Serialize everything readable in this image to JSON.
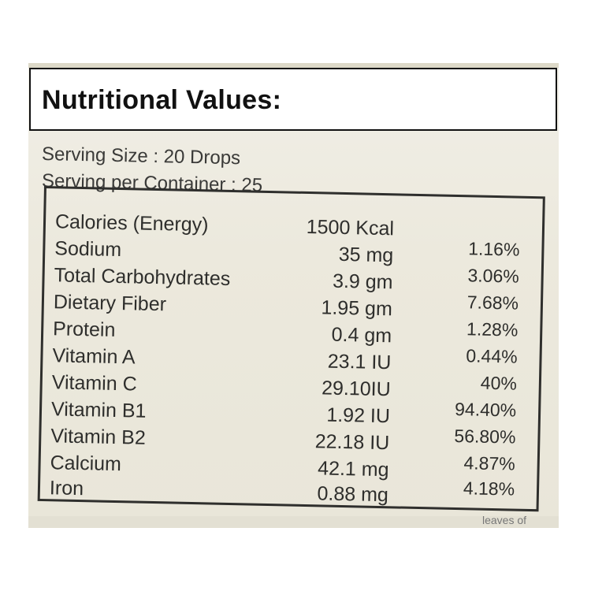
{
  "heading": "Nutritional Values:",
  "serving": {
    "size": "Serving Size : 20 Drops",
    "per_container": "Serving per Container : 25"
  },
  "nutrients": [
    {
      "name": "Calories (Energy)",
      "amount": "1500 Kcal",
      "percent": ""
    },
    {
      "name": "Sodium",
      "amount": "35  mg",
      "percent": "1.16%"
    },
    {
      "name": "Total Carbohydrates",
      "amount": "3.9 gm",
      "percent": "3.06%"
    },
    {
      "name": "Dietary Fiber",
      "amount": "1.95 gm",
      "percent": "7.68%"
    },
    {
      "name": "Protein",
      "amount": "0.4 gm",
      "percent": "1.28%"
    },
    {
      "name": "Vitamin A",
      "amount": "23.1 IU",
      "percent": "0.44%"
    },
    {
      "name": "Vitamin C",
      "amount": "29.10IU",
      "percent": "40%"
    },
    {
      "name": "Vitamin B1",
      "amount": "1.92 IU",
      "percent": "94.40%"
    },
    {
      "name": "Vitamin B2",
      "amount": "22.18 IU",
      "percent": "56.80%"
    },
    {
      "name": "Calcium",
      "amount": "42.1 mg",
      "percent": "4.87%"
    },
    {
      "name": "Iron",
      "amount": "0.88 mg",
      "percent": "4.18%"
    }
  ],
  "cut_off_text": "leaves of"
}
